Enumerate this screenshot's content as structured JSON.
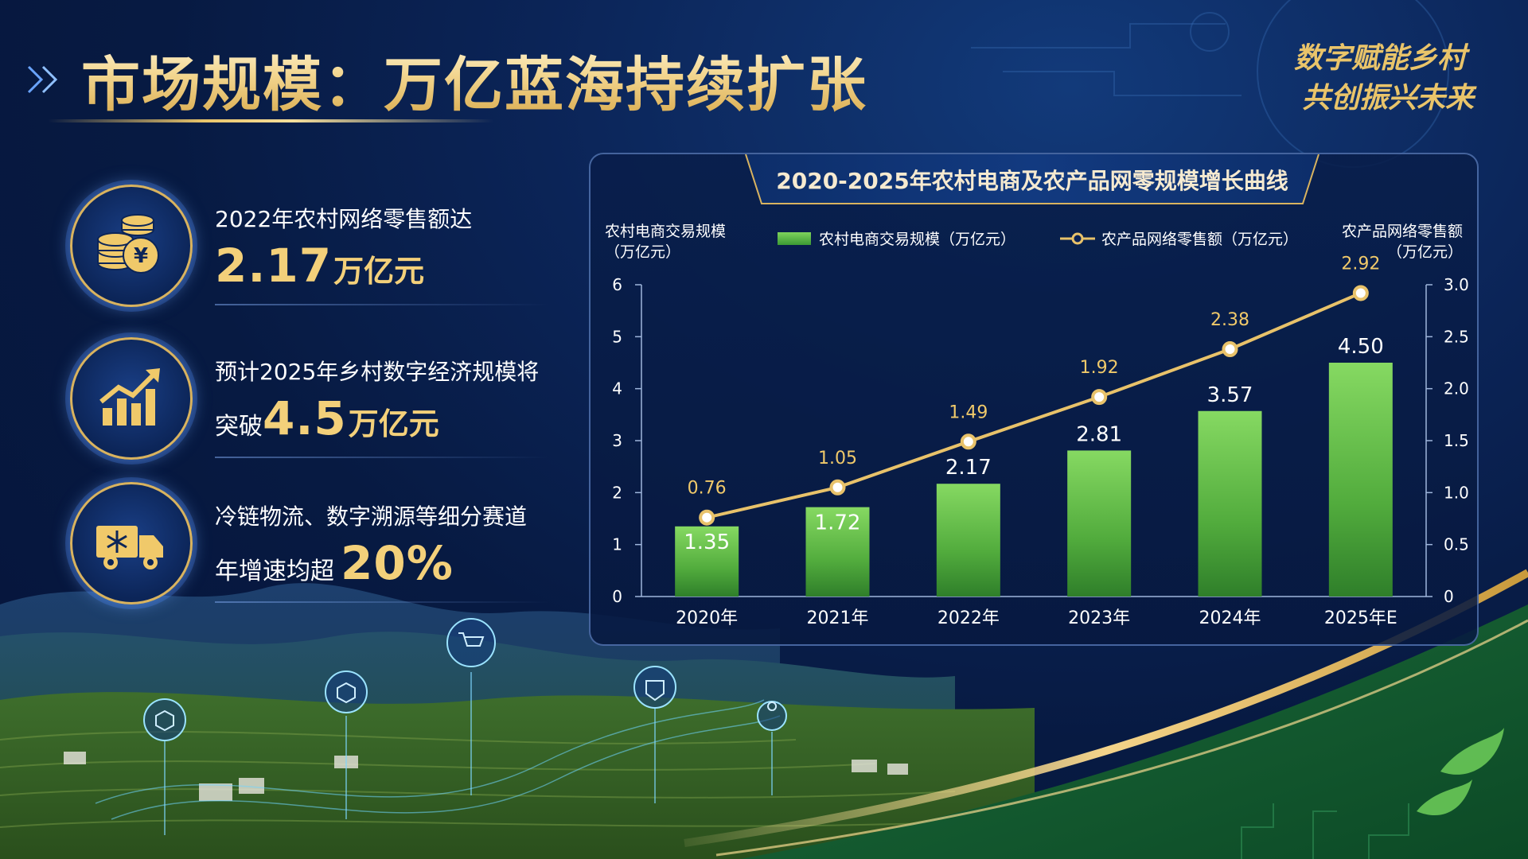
{
  "page_title": "市场规模：万亿蓝海持续扩张",
  "slogan": {
    "line1": "数字赋能乡村",
    "line2": "共创振兴未来"
  },
  "stats": [
    {
      "icon": "coins-yuan-icon",
      "line1": "2022年农村网络零售额达",
      "prefix": "",
      "value": "2.17",
      "unit": "万亿元"
    },
    {
      "icon": "growth-chart-icon",
      "line1": "预计2025年乡村数字经济规模将",
      "prefix": "突破",
      "value": "4.5",
      "unit": "万亿元"
    },
    {
      "icon": "cold-chain-truck-icon",
      "line1": "冷链物流、数字溯源等细分赛道",
      "prefix": "年增速均超",
      "value": "20%",
      "unit": ""
    }
  ],
  "colors": {
    "gold": "#e9c46a",
    "bar_green": "#5dbb45",
    "line_gold": "#e8c26a",
    "background": "#0b2457"
  },
  "chart_data": {
    "type": "bar",
    "title": "2020-2025年农村电商及农产品网零规模增长曲线",
    "ylabel_left": [
      "农村电商交易规模",
      "（万亿元）"
    ],
    "ylabel_right": [
      "农产品网络零售额",
      "（万亿元）"
    ],
    "categories": [
      "2020年",
      "2021年",
      "2022年",
      "2023年",
      "2024年",
      "2025年E"
    ],
    "series": [
      {
        "name": "农村电商交易规模（万亿元）",
        "type": "bar",
        "axis": "left",
        "values": [
          1.35,
          1.72,
          2.17,
          2.81,
          3.57,
          4.5
        ],
        "labels": [
          "1.35",
          "1.72",
          "2.17",
          "2.81",
          "3.57",
          "4.50"
        ]
      },
      {
        "name": "农产品网络零售额（万亿元）",
        "type": "line",
        "axis": "right",
        "values": [
          0.76,
          1.05,
          1.49,
          1.92,
          2.38,
          2.92
        ],
        "labels": [
          "0.76",
          "1.05",
          "1.49",
          "1.92",
          "2.38",
          "2.92"
        ]
      }
    ],
    "ylim_left": [
      0,
      6
    ],
    "yticks_left": [
      "0",
      "1",
      "2",
      "3",
      "4",
      "5",
      "6"
    ],
    "ylim_right": [
      0,
      3.0
    ],
    "yticks_right": [
      "0",
      "0.5",
      "1.0",
      "1.5",
      "2.0",
      "2.5",
      "3.0"
    ],
    "legend_position": "top-center",
    "grid": false
  }
}
